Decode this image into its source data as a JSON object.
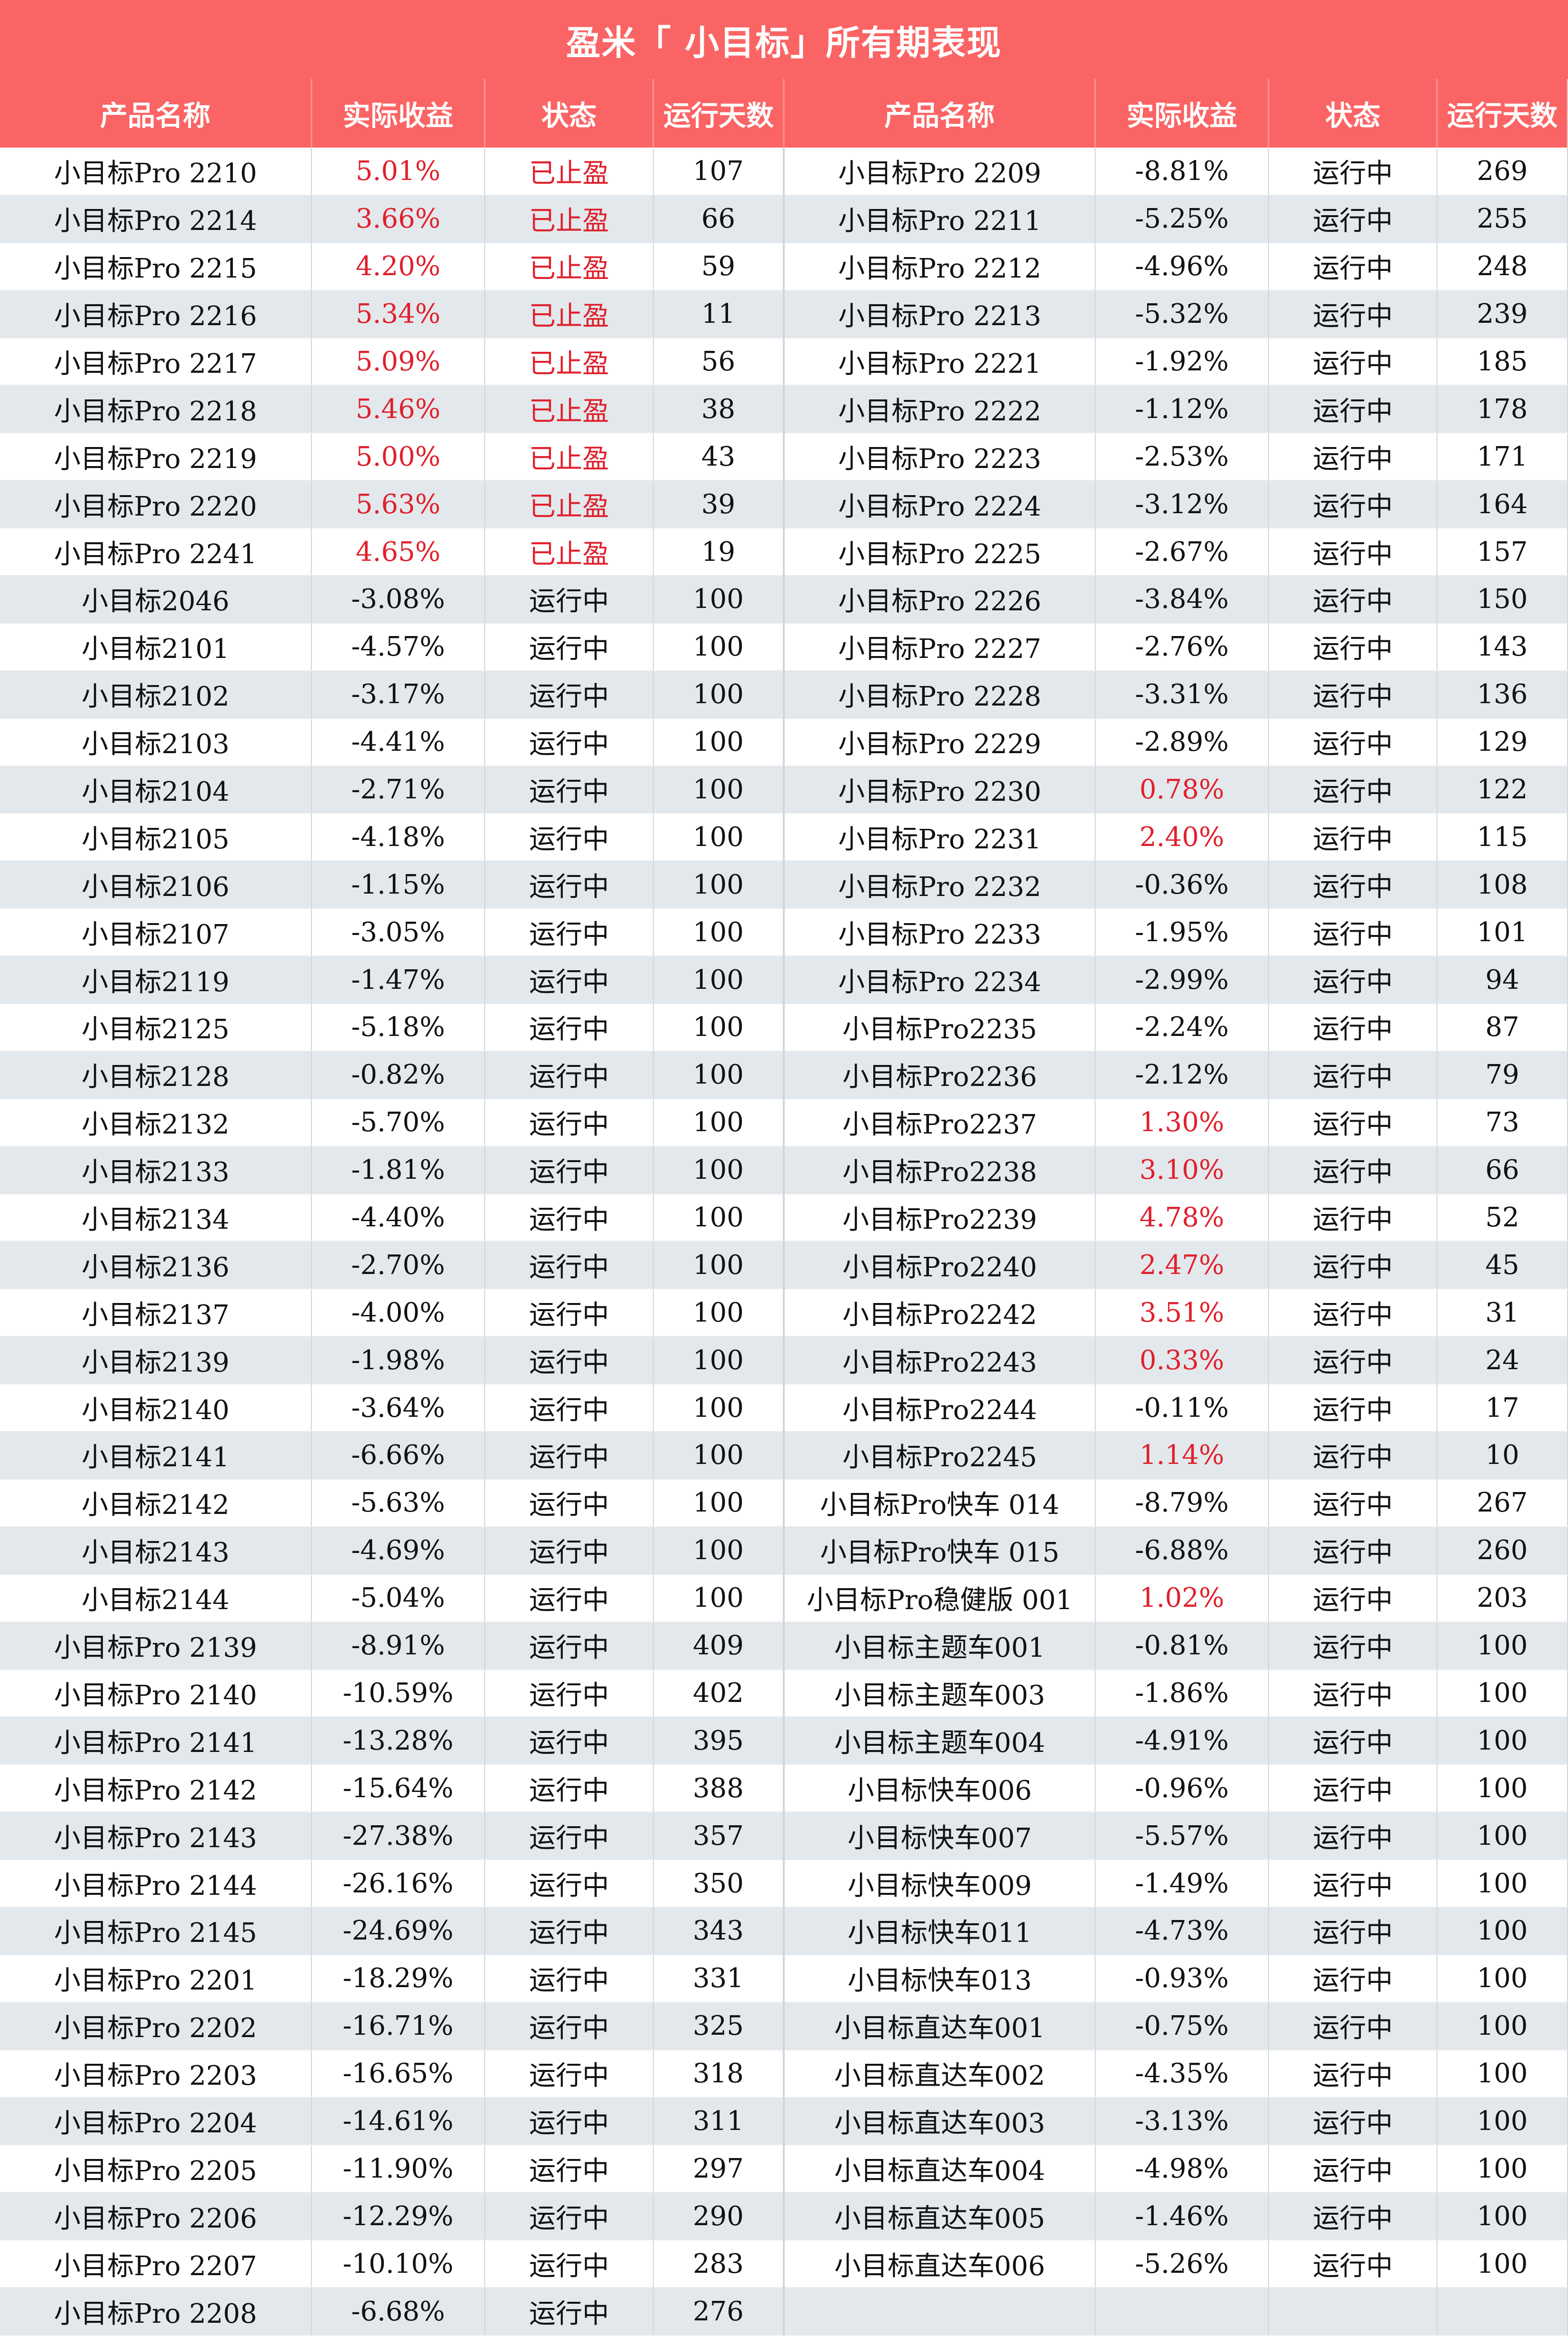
{
  "title": "盈米「 小目标」所有期表现",
  "headers": [
    "产品名称",
    "实际收益",
    "状态",
    "运行天数",
    "产品名称",
    "实际收益",
    "状态",
    "运行天数"
  ],
  "positive_color": "#e0202c",
  "left": [
    {
      "name": "小目标Pro 2210",
      "ret": "5.01%",
      "status": "已止盈",
      "days": "107",
      "pos": true
    },
    {
      "name": "小目标Pro 2214",
      "ret": "3.66%",
      "status": "已止盈",
      "days": "66",
      "pos": true
    },
    {
      "name": "小目标Pro 2215",
      "ret": "4.20%",
      "status": "已止盈",
      "days": "59",
      "pos": true
    },
    {
      "name": "小目标Pro 2216",
      "ret": "5.34%",
      "status": "已止盈",
      "days": "11",
      "pos": true
    },
    {
      "name": "小目标Pro 2217",
      "ret": "5.09%",
      "status": "已止盈",
      "days": "56",
      "pos": true
    },
    {
      "name": "小目标Pro 2218",
      "ret": "5.46%",
      "status": "已止盈",
      "days": "38",
      "pos": true
    },
    {
      "name": "小目标Pro 2219",
      "ret": "5.00%",
      "status": "已止盈",
      "days": "43",
      "pos": true
    },
    {
      "name": "小目标Pro 2220",
      "ret": "5.63%",
      "status": "已止盈",
      "days": "39",
      "pos": true
    },
    {
      "name": "小目标Pro 2241",
      "ret": "4.65%",
      "status": "已止盈",
      "days": "19",
      "pos": true
    },
    {
      "name": "小目标2046",
      "ret": "-3.08%",
      "status": "运行中",
      "days": "100",
      "pos": false
    },
    {
      "name": "小目标2101",
      "ret": "-4.57%",
      "status": "运行中",
      "days": "100",
      "pos": false
    },
    {
      "name": "小目标2102",
      "ret": "-3.17%",
      "status": "运行中",
      "days": "100",
      "pos": false
    },
    {
      "name": "小目标2103",
      "ret": "-4.41%",
      "status": "运行中",
      "days": "100",
      "pos": false
    },
    {
      "name": "小目标2104",
      "ret": "-2.71%",
      "status": "运行中",
      "days": "100",
      "pos": false
    },
    {
      "name": "小目标2105",
      "ret": "-4.18%",
      "status": "运行中",
      "days": "100",
      "pos": false
    },
    {
      "name": "小目标2106",
      "ret": "-1.15%",
      "status": "运行中",
      "days": "100",
      "pos": false
    },
    {
      "name": "小目标2107",
      "ret": "-3.05%",
      "status": "运行中",
      "days": "100",
      "pos": false
    },
    {
      "name": "小目标2119",
      "ret": "-1.47%",
      "status": "运行中",
      "days": "100",
      "pos": false
    },
    {
      "name": "小目标2125",
      "ret": "-5.18%",
      "status": "运行中",
      "days": "100",
      "pos": false
    },
    {
      "name": "小目标2128",
      "ret": "-0.82%",
      "status": "运行中",
      "days": "100",
      "pos": false
    },
    {
      "name": "小目标2132",
      "ret": "-5.70%",
      "status": "运行中",
      "days": "100",
      "pos": false
    },
    {
      "name": "小目标2133",
      "ret": "-1.81%",
      "status": "运行中",
      "days": "100",
      "pos": false
    },
    {
      "name": "小目标2134",
      "ret": "-4.40%",
      "status": "运行中",
      "days": "100",
      "pos": false
    },
    {
      "name": "小目标2136",
      "ret": "-2.70%",
      "status": "运行中",
      "days": "100",
      "pos": false
    },
    {
      "name": "小目标2137",
      "ret": "-4.00%",
      "status": "运行中",
      "days": "100",
      "pos": false
    },
    {
      "name": "小目标2139",
      "ret": "-1.98%",
      "status": "运行中",
      "days": "100",
      "pos": false
    },
    {
      "name": "小目标2140",
      "ret": "-3.64%",
      "status": "运行中",
      "days": "100",
      "pos": false
    },
    {
      "name": "小目标2141",
      "ret": "-6.66%",
      "status": "运行中",
      "days": "100",
      "pos": false
    },
    {
      "name": "小目标2142",
      "ret": "-5.63%",
      "status": "运行中",
      "days": "100",
      "pos": false
    },
    {
      "name": "小目标2143",
      "ret": "-4.69%",
      "status": "运行中",
      "days": "100",
      "pos": false
    },
    {
      "name": "小目标2144",
      "ret": "-5.04%",
      "status": "运行中",
      "days": "100",
      "pos": false
    },
    {
      "name": "小目标Pro 2139",
      "ret": "-8.91%",
      "status": "运行中",
      "days": "409",
      "pos": false
    },
    {
      "name": "小目标Pro 2140",
      "ret": "-10.59%",
      "status": "运行中",
      "days": "402",
      "pos": false
    },
    {
      "name": "小目标Pro 2141",
      "ret": "-13.28%",
      "status": "运行中",
      "days": "395",
      "pos": false
    },
    {
      "name": "小目标Pro 2142",
      "ret": "-15.64%",
      "status": "运行中",
      "days": "388",
      "pos": false
    },
    {
      "name": "小目标Pro 2143",
      "ret": "-27.38%",
      "status": "运行中",
      "days": "357",
      "pos": false
    },
    {
      "name": "小目标Pro 2144",
      "ret": "-26.16%",
      "status": "运行中",
      "days": "350",
      "pos": false
    },
    {
      "name": "小目标Pro 2145",
      "ret": "-24.69%",
      "status": "运行中",
      "days": "343",
      "pos": false
    },
    {
      "name": "小目标Pro 2201",
      "ret": "-18.29%",
      "status": "运行中",
      "days": "331",
      "pos": false
    },
    {
      "name": "小目标Pro 2202",
      "ret": "-16.71%",
      "status": "运行中",
      "days": "325",
      "pos": false
    },
    {
      "name": "小目标Pro 2203",
      "ret": "-16.65%",
      "status": "运行中",
      "days": "318",
      "pos": false
    },
    {
      "name": "小目标Pro 2204",
      "ret": "-14.61%",
      "status": "运行中",
      "days": "311",
      "pos": false
    },
    {
      "name": "小目标Pro 2205",
      "ret": "-11.90%",
      "status": "运行中",
      "days": "297",
      "pos": false
    },
    {
      "name": "小目标Pro 2206",
      "ret": "-12.29%",
      "status": "运行中",
      "days": "290",
      "pos": false
    },
    {
      "name": "小目标Pro 2207",
      "ret": "-10.10%",
      "status": "运行中",
      "days": "283",
      "pos": false
    },
    {
      "name": "小目标Pro 2208",
      "ret": "-6.68%",
      "status": "运行中",
      "days": "276",
      "pos": false
    }
  ],
  "right": [
    {
      "name": "小目标Pro 2209",
      "ret": "-8.81%",
      "status": "运行中",
      "days": "269",
      "pos": false
    },
    {
      "name": "小目标Pro 2211",
      "ret": "-5.25%",
      "status": "运行中",
      "days": "255",
      "pos": false
    },
    {
      "name": "小目标Pro 2212",
      "ret": "-4.96%",
      "status": "运行中",
      "days": "248",
      "pos": false
    },
    {
      "name": "小目标Pro 2213",
      "ret": "-5.32%",
      "status": "运行中",
      "days": "239",
      "pos": false
    },
    {
      "name": "小目标Pro 2221",
      "ret": "-1.92%",
      "status": "运行中",
      "days": "185",
      "pos": false
    },
    {
      "name": "小目标Pro 2222",
      "ret": "-1.12%",
      "status": "运行中",
      "days": "178",
      "pos": false
    },
    {
      "name": "小目标Pro 2223",
      "ret": "-2.53%",
      "status": "运行中",
      "days": "171",
      "pos": false
    },
    {
      "name": "小目标Pro 2224",
      "ret": "-3.12%",
      "status": "运行中",
      "days": "164",
      "pos": false
    },
    {
      "name": "小目标Pro 2225",
      "ret": "-2.67%",
      "status": "运行中",
      "days": "157",
      "pos": false
    },
    {
      "name": "小目标Pro 2226",
      "ret": "-3.84%",
      "status": "运行中",
      "days": "150",
      "pos": false
    },
    {
      "name": "小目标Pro 2227",
      "ret": "-2.76%",
      "status": "运行中",
      "days": "143",
      "pos": false
    },
    {
      "name": "小目标Pro 2228",
      "ret": "-3.31%",
      "status": "运行中",
      "days": "136",
      "pos": false
    },
    {
      "name": "小目标Pro 2229",
      "ret": "-2.89%",
      "status": "运行中",
      "days": "129",
      "pos": false
    },
    {
      "name": "小目标Pro 2230",
      "ret": "0.78%",
      "status": "运行中",
      "days": "122",
      "pos": true
    },
    {
      "name": "小目标Pro 2231",
      "ret": "2.40%",
      "status": "运行中",
      "days": "115",
      "pos": true
    },
    {
      "name": "小目标Pro 2232",
      "ret": "-0.36%",
      "status": "运行中",
      "days": "108",
      "pos": false
    },
    {
      "name": "小目标Pro 2233",
      "ret": "-1.95%",
      "status": "运行中",
      "days": "101",
      "pos": false
    },
    {
      "name": "小目标Pro 2234",
      "ret": "-2.99%",
      "status": "运行中",
      "days": "94",
      "pos": false
    },
    {
      "name": "小目标Pro2235",
      "ret": "-2.24%",
      "status": "运行中",
      "days": "87",
      "pos": false
    },
    {
      "name": "小目标Pro2236",
      "ret": "-2.12%",
      "status": "运行中",
      "days": "79",
      "pos": false
    },
    {
      "name": "小目标Pro2237",
      "ret": "1.30%",
      "status": "运行中",
      "days": "73",
      "pos": true
    },
    {
      "name": "小目标Pro2238",
      "ret": "3.10%",
      "status": "运行中",
      "days": "66",
      "pos": true
    },
    {
      "name": "小目标Pro2239",
      "ret": "4.78%",
      "status": "运行中",
      "days": "52",
      "pos": true
    },
    {
      "name": "小目标Pro2240",
      "ret": "2.47%",
      "status": "运行中",
      "days": "45",
      "pos": true
    },
    {
      "name": "小目标Pro2242",
      "ret": "3.51%",
      "status": "运行中",
      "days": "31",
      "pos": true
    },
    {
      "name": "小目标Pro2243",
      "ret": "0.33%",
      "status": "运行中",
      "days": "24",
      "pos": true
    },
    {
      "name": "小目标Pro2244",
      "ret": "-0.11%",
      "status": "运行中",
      "days": "17",
      "pos": false
    },
    {
      "name": "小目标Pro2245",
      "ret": "1.14%",
      "status": "运行中",
      "days": "10",
      "pos": true
    },
    {
      "name": "小目标Pro快车 014",
      "ret": "-8.79%",
      "status": "运行中",
      "days": "267",
      "pos": false
    },
    {
      "name": "小目标Pro快车 015",
      "ret": "-6.88%",
      "status": "运行中",
      "days": "260",
      "pos": false
    },
    {
      "name": "小目标Pro稳健版 001",
      "ret": "1.02%",
      "status": "运行中",
      "days": "203",
      "pos": true
    },
    {
      "name": "小目标主题车001",
      "ret": "-0.81%",
      "status": "运行中",
      "days": "100",
      "pos": false
    },
    {
      "name": "小目标主题车003",
      "ret": "-1.86%",
      "status": "运行中",
      "days": "100",
      "pos": false
    },
    {
      "name": "小目标主题车004",
      "ret": "-4.91%",
      "status": "运行中",
      "days": "100",
      "pos": false
    },
    {
      "name": "小目标快车006",
      "ret": "-0.96%",
      "status": "运行中",
      "days": "100",
      "pos": false
    },
    {
      "name": "小目标快车007",
      "ret": "-5.57%",
      "status": "运行中",
      "days": "100",
      "pos": false
    },
    {
      "name": "小目标快车009",
      "ret": "-1.49%",
      "status": "运行中",
      "days": "100",
      "pos": false
    },
    {
      "name": "小目标快车011",
      "ret": "-4.73%",
      "status": "运行中",
      "days": "100",
      "pos": false
    },
    {
      "name": "小目标快车013",
      "ret": "-0.93%",
      "status": "运行中",
      "days": "100",
      "pos": false
    },
    {
      "name": "小目标直达车001",
      "ret": "-0.75%",
      "status": "运行中",
      "days": "100",
      "pos": false
    },
    {
      "name": "小目标直达车002",
      "ret": "-4.35%",
      "status": "运行中",
      "days": "100",
      "pos": false
    },
    {
      "name": "小目标直达车003",
      "ret": "-3.13%",
      "status": "运行中",
      "days": "100",
      "pos": false
    },
    {
      "name": "小目标直达车004",
      "ret": "-4.98%",
      "status": "运行中",
      "days": "100",
      "pos": false
    },
    {
      "name": "小目标直达车005",
      "ret": "-1.46%",
      "status": "运行中",
      "days": "100",
      "pos": false
    },
    {
      "name": "小目标直达车006",
      "ret": "-5.26%",
      "status": "运行中",
      "days": "100",
      "pos": false
    }
  ]
}
